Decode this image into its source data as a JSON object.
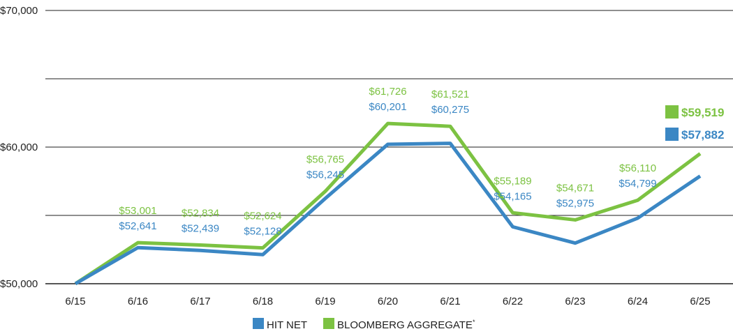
{
  "chart_data": {
    "type": "line",
    "categories": [
      "6/15",
      "6/16",
      "6/17",
      "6/18",
      "6/19",
      "6/20",
      "6/21",
      "6/22",
      "6/23",
      "6/24",
      "6/25"
    ],
    "y_ticks": [
      {
        "value": 50000,
        "label": "$50,000"
      },
      {
        "value": 60000,
        "label": "$60,000"
      },
      {
        "value": 70000,
        "label": "$70,000"
      }
    ],
    "ylim": [
      50000,
      70000
    ],
    "series": [
      {
        "name": "BLOOMBERG AGGREGATE",
        "name_sup": "*",
        "color": "#7cc242",
        "values": [
          50000,
          53001,
          52834,
          52624,
          56765,
          61726,
          61521,
          55189,
          54671,
          56110,
          59519
        ],
        "labels": [
          "",
          "$53,001",
          "$52,834",
          "$52,624",
          "$56,765",
          "$61,726",
          "$61,521",
          "$55,189",
          "$54,671",
          "$56,110",
          "$59,519"
        ]
      },
      {
        "name": "HIT NET",
        "color": "#3b87c4",
        "values": [
          50000,
          52641,
          52439,
          52128,
          56245,
          60201,
          60275,
          54165,
          52975,
          54799,
          57882
        ],
        "labels": [
          "",
          "$52,641",
          "$52,439",
          "$52,128",
          "$56,245",
          "$60,201",
          "$60,275",
          "$54,165",
          "$52,975",
          "$54,799",
          "$57,882"
        ]
      }
    ],
    "legend": {
      "position": "bottom",
      "items": [
        {
          "name": "HIT NET",
          "sup": "",
          "color": "#3b87c4"
        },
        {
          "name": "BLOOMBERG AGGREGATE",
          "sup": "*",
          "color": "#7cc242"
        }
      ]
    },
    "grid": true,
    "gridline_color": "#1f1f1f"
  }
}
